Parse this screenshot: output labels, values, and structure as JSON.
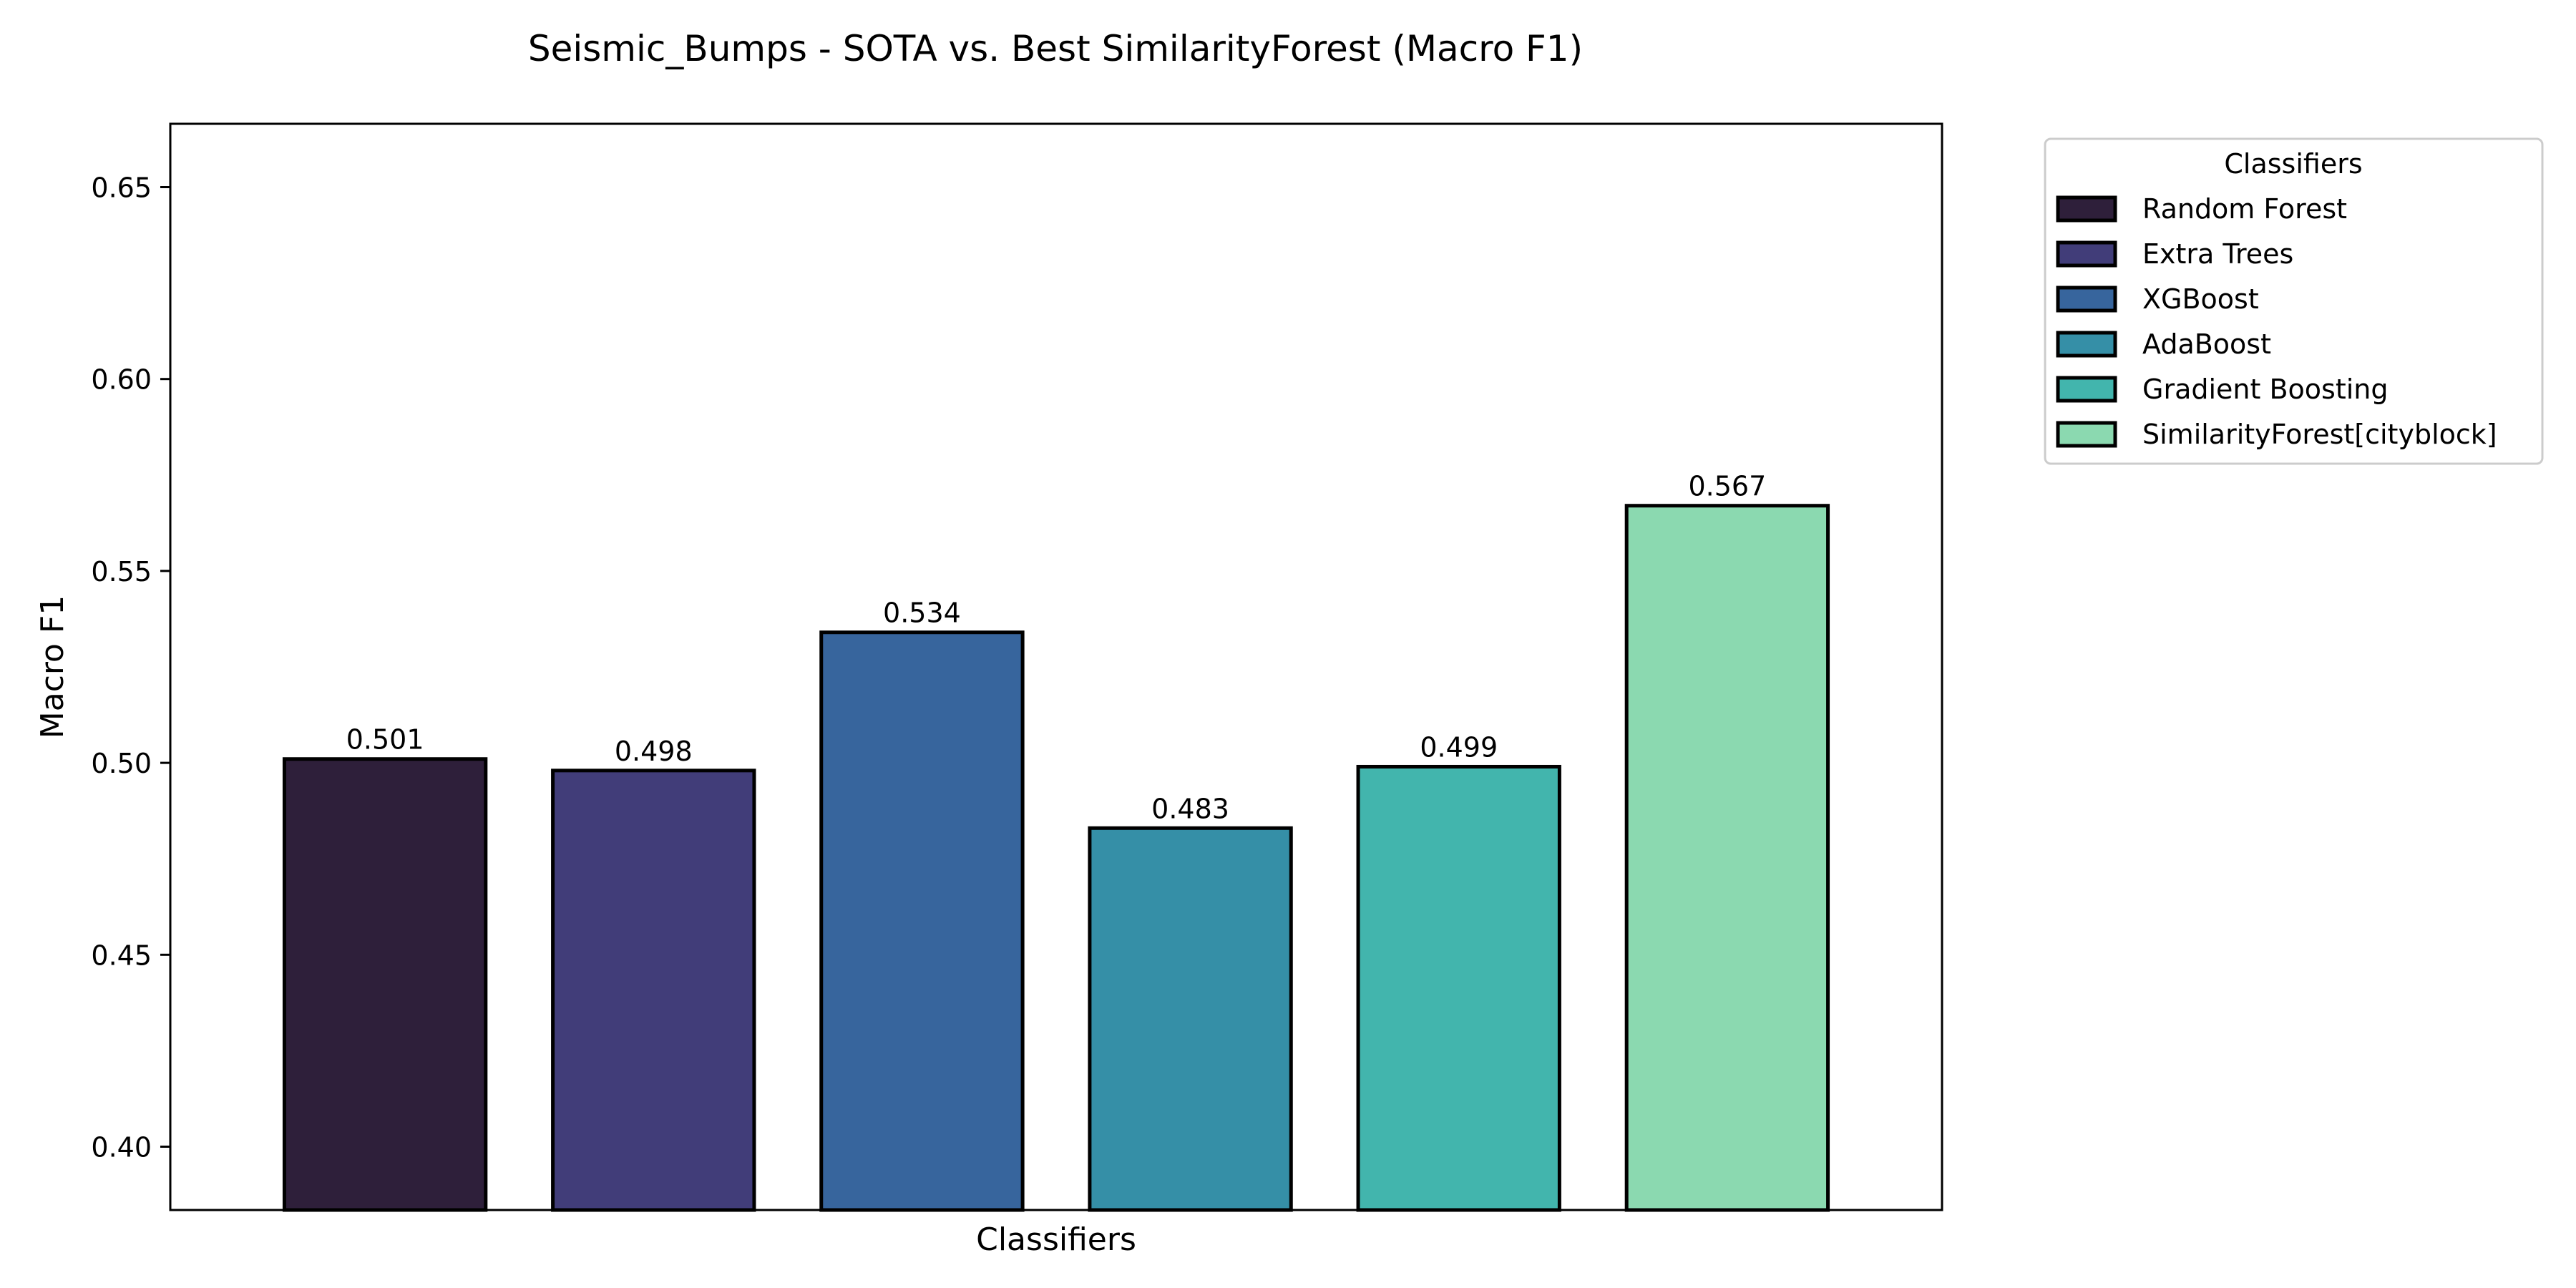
{
  "chart_data": {
    "type": "bar",
    "title": "Seismic_Bumps - SOTA vs. Best SimilarityForest (Macro F1)",
    "xlabel": "Classifiers",
    "ylabel": "Macro F1",
    "ylim": [
      0.3835,
      0.6665
    ],
    "yticks": [
      "0.40",
      "0.45",
      "0.50",
      "0.55",
      "0.60",
      "0.65"
    ],
    "ytick_values": [
      0.4,
      0.45,
      0.5,
      0.55,
      0.6,
      0.65
    ],
    "xticks_visible": false,
    "grid": false,
    "categories": [
      "Random Forest",
      "Extra Trees",
      "XGBoost",
      "AdaBoost",
      "Gradient Boosting",
      "SimilarityForest[cityblock]"
    ],
    "values": [
      0.501,
      0.498,
      0.534,
      0.483,
      0.499,
      0.567
    ],
    "value_labels": [
      "0.501",
      "0.498",
      "0.534",
      "0.483",
      "0.499",
      "0.567"
    ],
    "colors": [
      "#2e1f3a",
      "#413d79",
      "#37659d",
      "#358fa7",
      "#42b5ad",
      "#8bd9b0"
    ],
    "bar_edge_color": "#000000",
    "legend": {
      "title": "Classifiers",
      "placement": "outside-right-top",
      "entries": [
        "Random Forest",
        "Extra Trees",
        "XGBoost",
        "AdaBoost",
        "Gradient Boosting",
        "SimilarityForest[cityblock]"
      ]
    }
  }
}
